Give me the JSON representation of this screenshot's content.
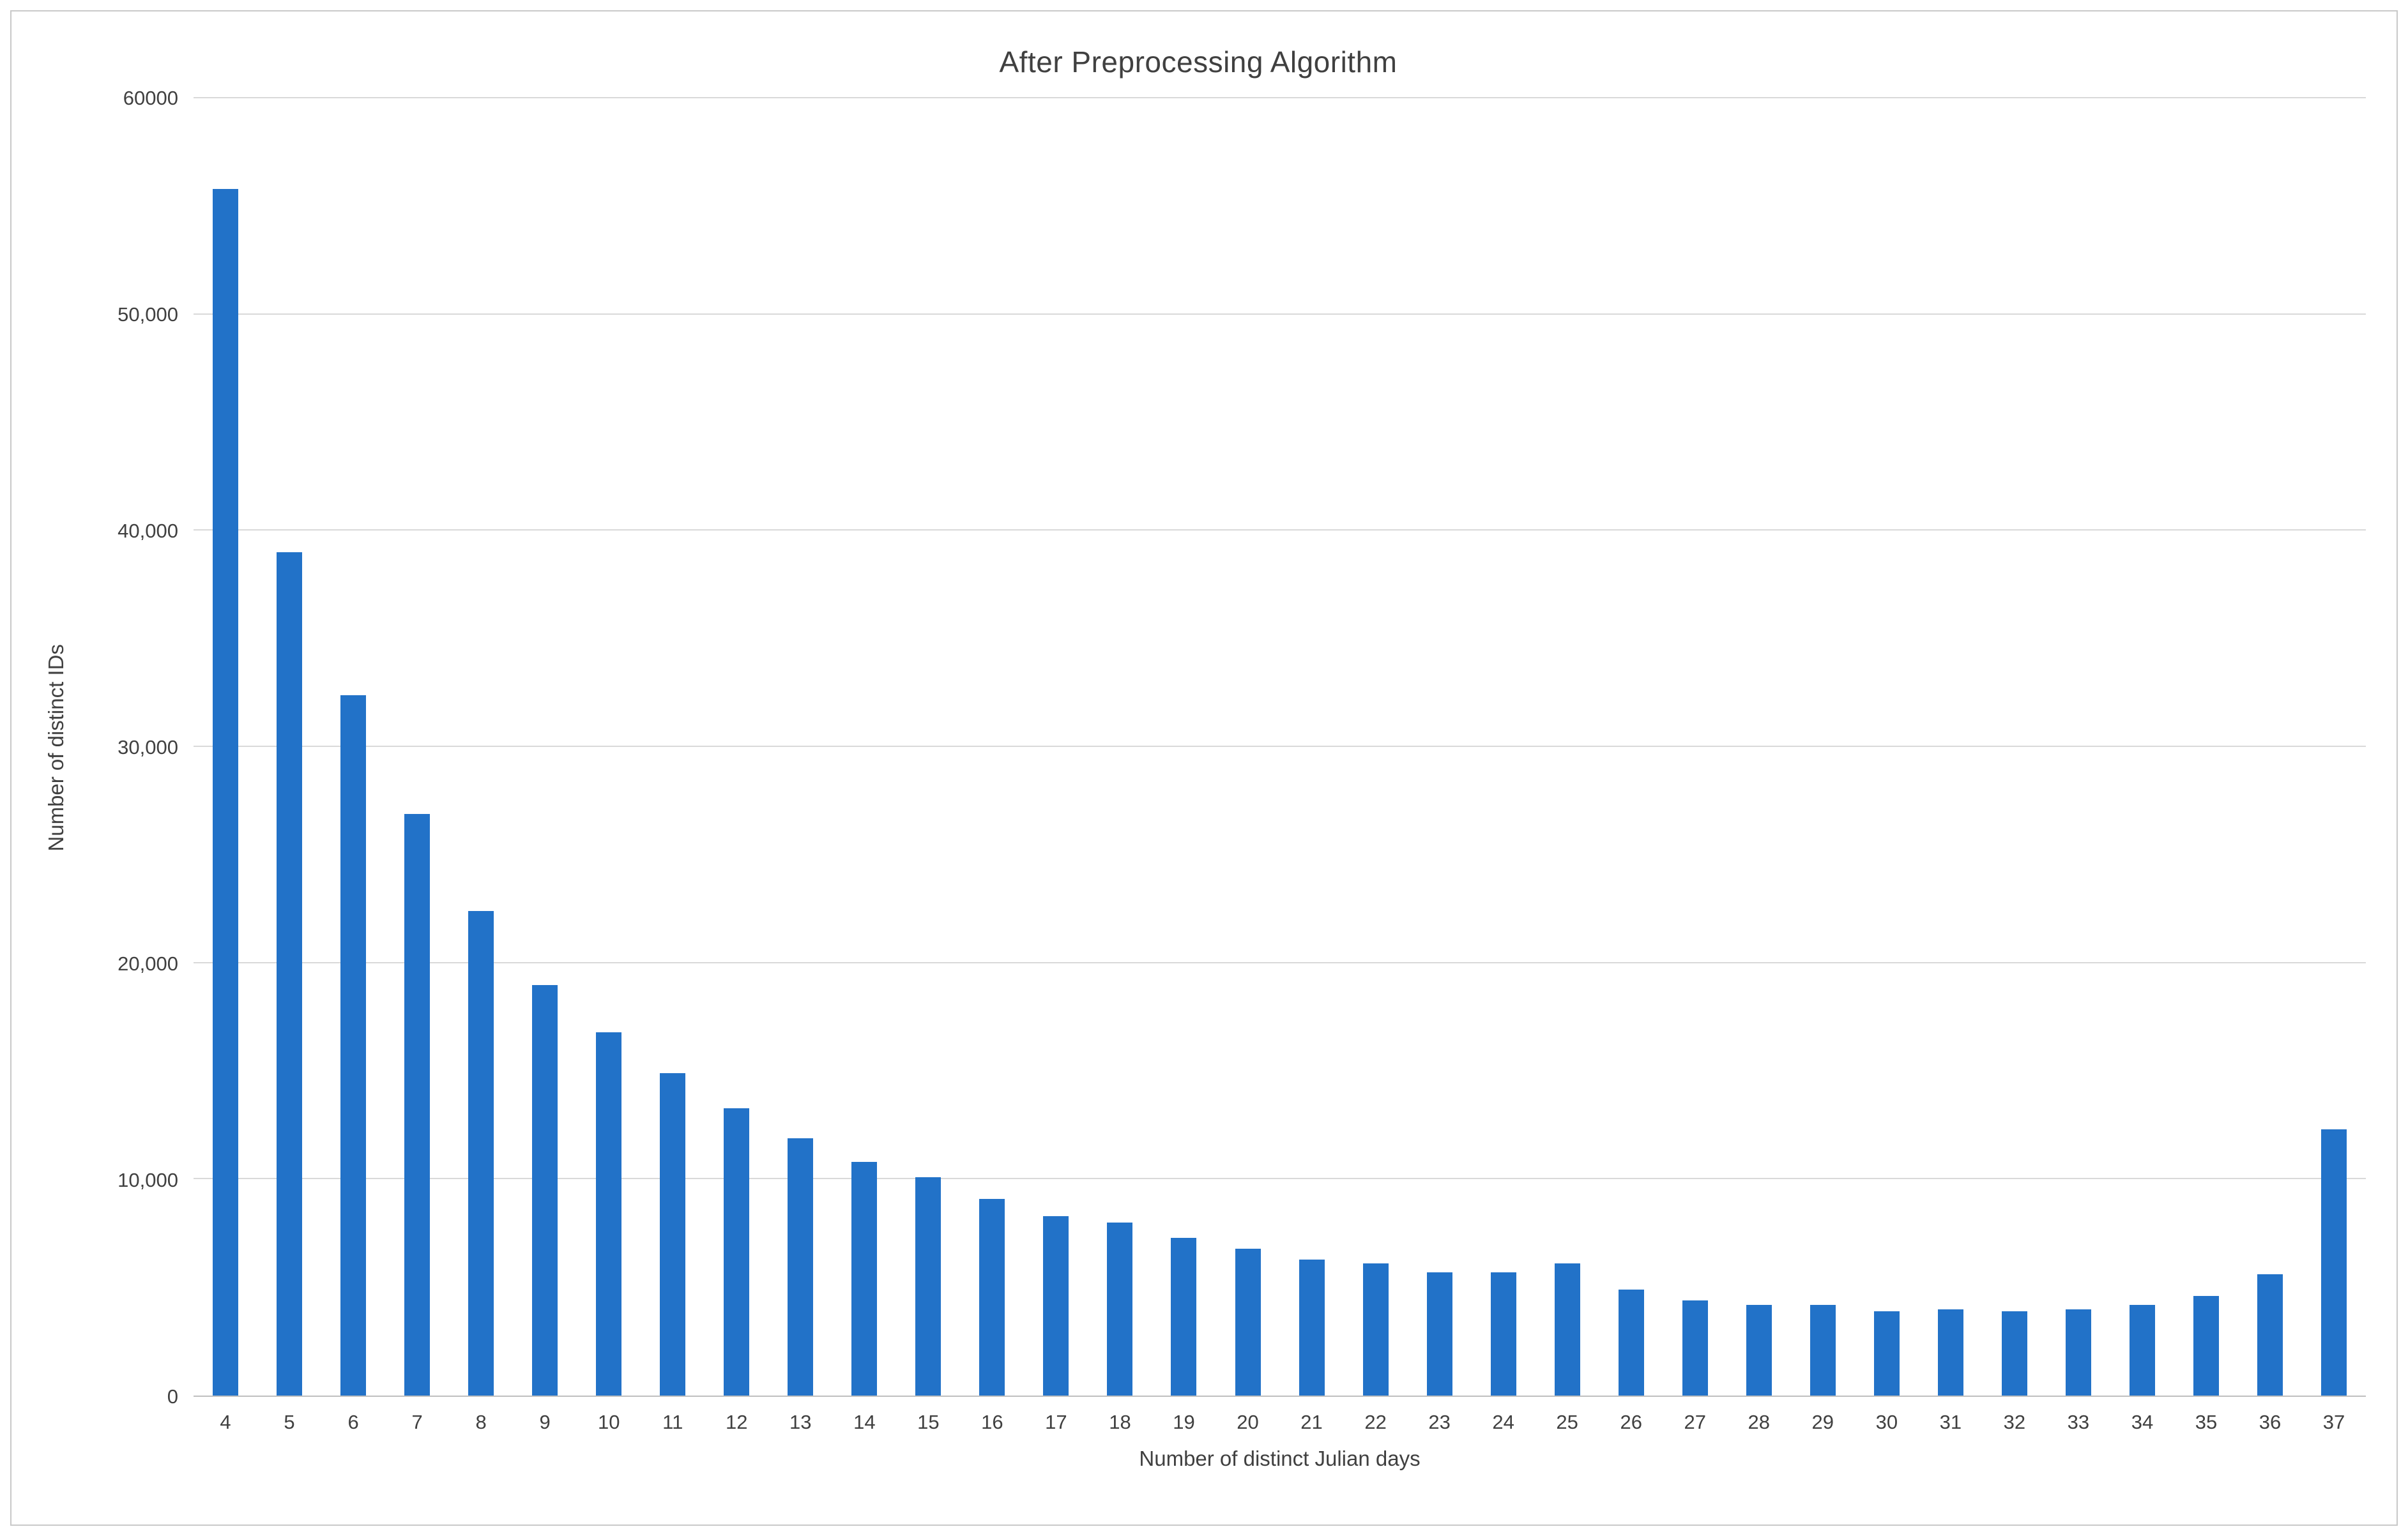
{
  "chart_data": {
    "type": "bar",
    "title": "After Preprocessing Algorithm",
    "xlabel": "Number of distinct Julian days",
    "ylabel": "Number of distinct IDs",
    "categories": [
      "4",
      "5",
      "6",
      "7",
      "8",
      "9",
      "10",
      "11",
      "12",
      "13",
      "14",
      "15",
      "16",
      "17",
      "18",
      "19",
      "20",
      "21",
      "22",
      "23",
      "24",
      "25",
      "26",
      "27",
      "28",
      "29",
      "30",
      "31",
      "32",
      "33",
      "34",
      "35",
      "36",
      "37"
    ],
    "values": [
      55800,
      39000,
      32400,
      26900,
      22400,
      19000,
      16800,
      14900,
      13300,
      11900,
      10800,
      10100,
      9100,
      8300,
      8000,
      7300,
      6800,
      6300,
      6100,
      5700,
      5700,
      6100,
      4900,
      4400,
      4200,
      4200,
      3900,
      4000,
      3900,
      4000,
      4200,
      4600,
      5600,
      12300
    ],
    "ylim": [
      0,
      60000
    ],
    "yticks": [
      {
        "label": "0",
        "value": 0
      },
      {
        "label": "10,000",
        "value": 10000
      },
      {
        "label": "20,000",
        "value": 20000
      },
      {
        "label": "30,000",
        "value": 30000
      },
      {
        "label": "40,000",
        "value": 40000
      },
      {
        "label": "50,000",
        "value": 50000
      },
      {
        "label": "60000",
        "value": 60000
      }
    ],
    "grid": true,
    "legend": "none",
    "colors": {
      "bar": "#2272c8",
      "gridline": "#d9d9d9",
      "axis_line": "#bfbfbf",
      "text": "#404040"
    }
  }
}
